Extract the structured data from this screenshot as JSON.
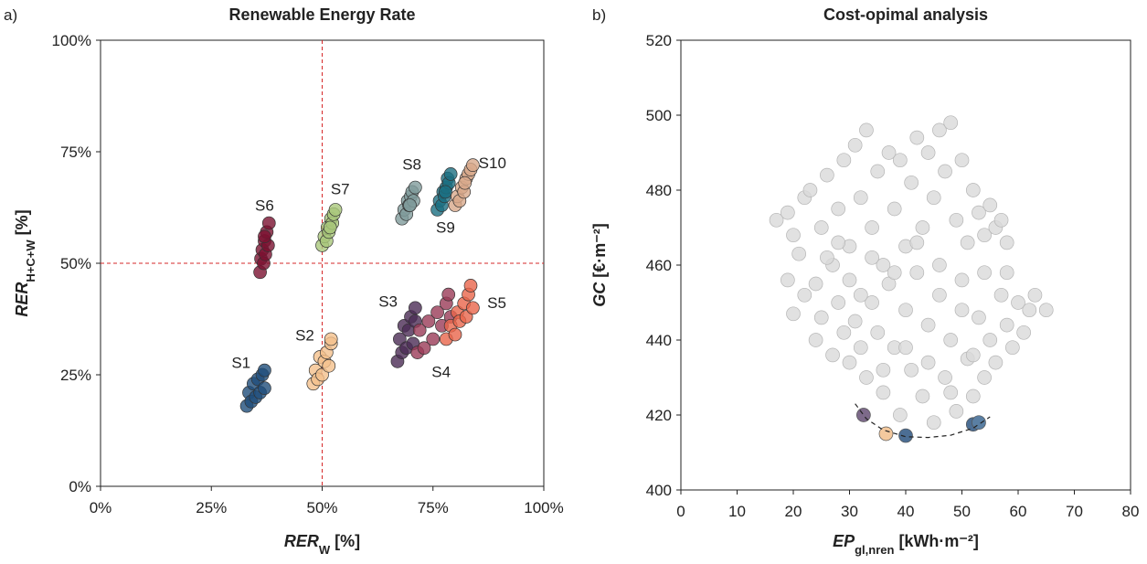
{
  "chart_data": [
    {
      "type": "scatter",
      "panel_label": "a)",
      "title": "Renewable Energy Rate",
      "xlabel": {
        "main": "RER",
        "sub": "W",
        "unit": "[%]"
      },
      "ylabel": {
        "main": "RER",
        "sub": "H+C+W",
        "unit": "[%]"
      },
      "xlim": [
        0,
        100
      ],
      "ylim": [
        0,
        100
      ],
      "xticks": [
        {
          "value": 0,
          "label": "0%"
        },
        {
          "value": 25,
          "label": "25%"
        },
        {
          "value": 50,
          "label": "50%"
        },
        {
          "value": 75,
          "label": "75%"
        },
        {
          "value": 100,
          "label": "100%"
        }
      ],
      "yticks": [
        {
          "value": 0,
          "label": "0%"
        },
        {
          "value": 25,
          "label": "25%"
        },
        {
          "value": 50,
          "label": "50%"
        },
        {
          "value": 75,
          "label": "75%"
        },
        {
          "value": 100,
          "label": "100%"
        }
      ],
      "reference_lines": {
        "x": 50,
        "y": 50,
        "color": "#d62728"
      },
      "series": [
        {
          "name": "S1",
          "color": "#1f4e7a",
          "x": [
            33,
            33.5,
            34,
            34.5,
            35,
            35.5,
            36,
            36.5,
            37,
            37
          ],
          "values": [
            18,
            21,
            19,
            23,
            20,
            24,
            21,
            25,
            26,
            22
          ]
        },
        {
          "name": "S2",
          "color": "#f4c08c",
          "x": [
            48,
            48.5,
            49,
            49.5,
            50,
            50.5,
            51,
            51.5,
            52,
            52
          ],
          "values": [
            23,
            26,
            24,
            29,
            25,
            28,
            30,
            27,
            32,
            33
          ]
        },
        {
          "name": "S3",
          "color": "#4b2c55",
          "x": [
            67,
            67.5,
            68,
            68.5,
            69,
            69.5,
            70,
            70.5,
            71,
            71
          ],
          "values": [
            28,
            33,
            30,
            36,
            31,
            35,
            38,
            32,
            40,
            37
          ]
        },
        {
          "name": "S4",
          "color": "#9a3b58",
          "x": [
            71.5,
            72,
            73,
            74,
            75,
            76,
            77,
            78,
            78.5,
            79
          ],
          "values": [
            30,
            35,
            31,
            37,
            33,
            39,
            36,
            41,
            43,
            38
          ]
        },
        {
          "name": "S5",
          "color": "#e8654b",
          "x": [
            78,
            79,
            80,
            80.5,
            81,
            82,
            82.5,
            83,
            83.5,
            84
          ],
          "values": [
            33,
            36,
            34,
            39,
            37,
            41,
            38,
            43,
            45,
            40
          ]
        },
        {
          "name": "S6",
          "color": "#7b1131",
          "x": [
            36,
            36.2,
            36.5,
            36.8,
            37,
            37.2,
            37.5,
            37.8,
            38,
            37
          ],
          "values": [
            48,
            51,
            53,
            50,
            55,
            52,
            57,
            54,
            59,
            56
          ]
        },
        {
          "name": "S7",
          "color": "#a9c77b",
          "x": [
            50,
            50.5,
            51,
            51.2,
            51.5,
            52,
            52.3,
            52.6,
            53,
            51.8
          ],
          "values": [
            54,
            56,
            55,
            58,
            57,
            60,
            59,
            61,
            62,
            58
          ]
        },
        {
          "name": "S8",
          "color": "#809b9b",
          "x": [
            68,
            68.5,
            69,
            69.3,
            69.6,
            70,
            70.3,
            70.6,
            71,
            69.8
          ],
          "values": [
            60,
            62,
            61,
            64,
            63,
            65,
            66,
            64,
            67,
            63
          ]
        },
        {
          "name": "S9",
          "color": "#1b6f82",
          "x": [
            76,
            76.5,
            77,
            77.3,
            77.6,
            78,
            78.3,
            78.6,
            79,
            77.8
          ],
          "values": [
            62,
            64,
            63,
            66,
            65,
            67,
            69,
            68,
            70,
            66
          ]
        },
        {
          "name": "S10",
          "color": "#d8a98b",
          "x": [
            80,
            80.5,
            81,
            81.5,
            82,
            82.5,
            83,
            83.5,
            84,
            82.2
          ],
          "values": [
            63,
            65,
            64,
            67,
            66,
            69,
            70,
            71,
            72,
            68
          ]
        }
      ]
    },
    {
      "type": "scatter",
      "panel_label": "b)",
      "title": "Cost-opimal analysis",
      "xlabel": {
        "main": "EP",
        "sub": "gl,nren",
        "unit": "[kWh·m⁻²]"
      },
      "ylabel": {
        "main": "GC",
        "unit": "[€·m⁻²]"
      },
      "xlim": [
        0,
        80
      ],
      "ylim": [
        400,
        520
      ],
      "xticks": [
        0,
        10,
        20,
        30,
        40,
        50,
        60,
        70,
        80
      ],
      "yticks": [
        400,
        420,
        440,
        460,
        480,
        500,
        520
      ],
      "series": [
        {
          "color": "#d9d9d9",
          "x": [
            17,
            19,
            20,
            21,
            22,
            23,
            24,
            25,
            26,
            27,
            28,
            29,
            30,
            31,
            32,
            33,
            34,
            35,
            36,
            37,
            38,
            39,
            40,
            41,
            42,
            43,
            44,
            45,
            46,
            47,
            48,
            49,
            50,
            51,
            52,
            53,
            54,
            55,
            56,
            57,
            58,
            19,
            20,
            22,
            24,
            25,
            27,
            28,
            29,
            30,
            31,
            32,
            33,
            34,
            35,
            36,
            37,
            38,
            39,
            40,
            41,
            42,
            43,
            44,
            45,
            46,
            47,
            48,
            49,
            50,
            51,
            52,
            53,
            54,
            55,
            56,
            57,
            58,
            59,
            60,
            61,
            62,
            63,
            65,
            26,
            30,
            34,
            38,
            42,
            46,
            50,
            54,
            58,
            44,
            36,
            48,
            52,
            40,
            32,
            28
          ],
          "values": [
            472,
            474,
            468,
            463,
            478,
            480,
            455,
            470,
            484,
            460,
            475,
            488,
            465,
            492,
            478,
            496,
            470,
            485,
            460,
            490,
            475,
            488,
            465,
            482,
            494,
            470,
            490,
            478,
            496,
            485,
            498,
            472,
            488,
            466,
            480,
            474,
            468,
            476,
            470,
            472,
            466,
            456,
            447,
            452,
            440,
            446,
            436,
            450,
            442,
            434,
            445,
            438,
            430,
            450,
            442,
            426,
            455,
            438,
            420,
            448,
            432,
            458,
            425,
            444,
            418,
            452,
            430,
            440,
            421,
            456,
            435,
            425,
            446,
            430,
            440,
            434,
            452,
            444,
            438,
            450,
            442,
            448,
            452,
            448,
            462,
            456,
            462,
            458,
            466,
            460,
            448,
            458,
            458,
            434,
            432,
            426,
            436,
            438,
            452,
            466
          ]
        },
        {
          "colors": [
            "#7d6a8a",
            "#f4c99e",
            "#4c6e94",
            "#4c6e94",
            "#5a7fa3"
          ],
          "x": [
            32.5,
            36.5,
            40,
            52,
            53
          ],
          "values": [
            420,
            415,
            414.5,
            417.5,
            418
          ]
        }
      ],
      "front": {
        "x": [
          31,
          33,
          36,
          40,
          44,
          48,
          52,
          55
        ],
        "values": [
          423,
          419,
          416,
          414.2,
          414,
          414.6,
          416.5,
          419.5
        ]
      }
    }
  ]
}
